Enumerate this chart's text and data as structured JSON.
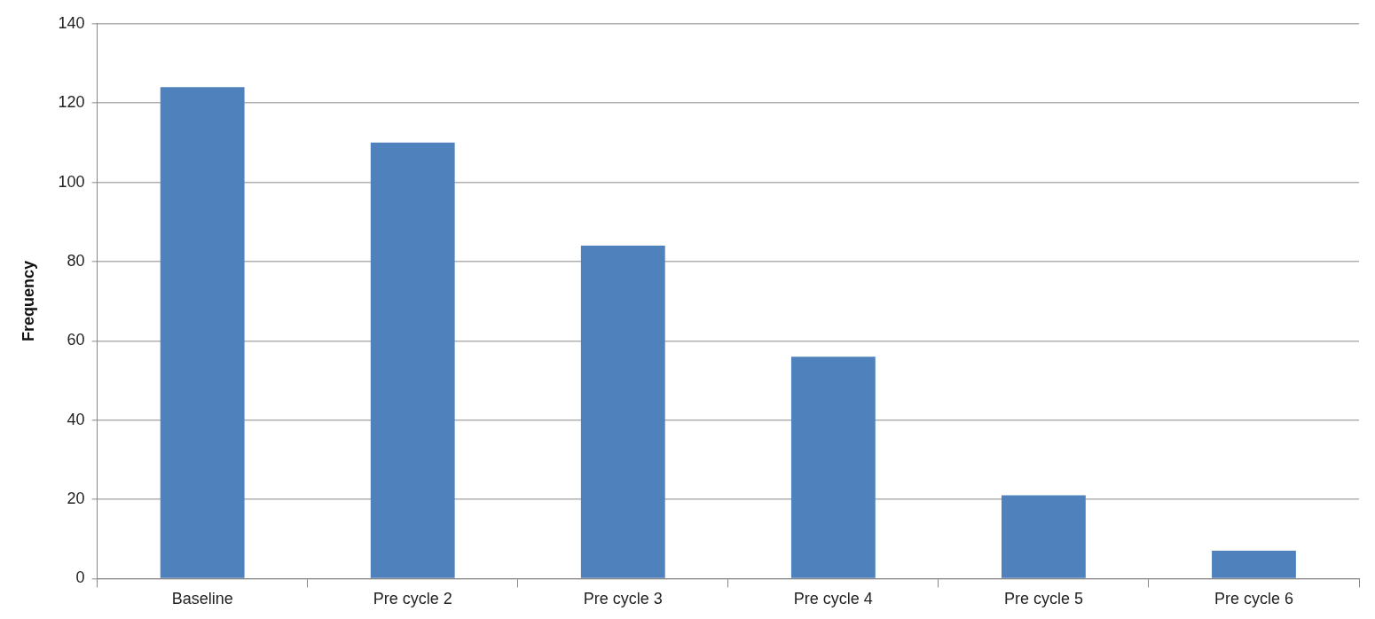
{
  "chart_data": {
    "type": "bar",
    "ylabel": "Frequency",
    "categories": [
      "Baseline",
      "Pre cycle 2",
      "Pre cycle 3",
      "Pre cycle 4",
      "Pre cycle 5",
      "Pre cycle 6"
    ],
    "values": [
      124,
      110,
      84,
      56,
      21,
      7
    ],
    "color": "#4f81bd",
    "ylim": [
      0,
      140
    ],
    "yticks": [
      0,
      20,
      40,
      60,
      80,
      100,
      120,
      140
    ],
    "grid": "y",
    "legend": false
  }
}
